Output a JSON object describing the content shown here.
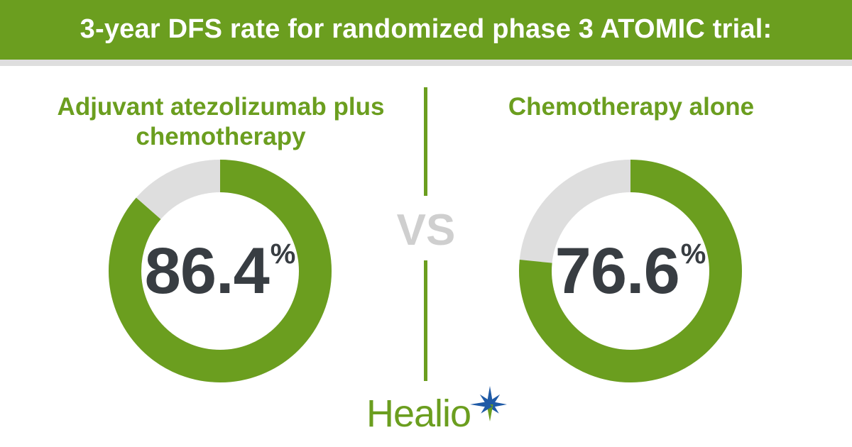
{
  "header": {
    "title": "3-year DFS rate for randomized phase 3 ATOMIC trial:"
  },
  "colors": {
    "accent": "#6b9e1f",
    "track": "#dedede",
    "value_text": "#383d42",
    "vs": "#cfcfcf",
    "star_blue": "#1f5aa6"
  },
  "vs_label": "VS",
  "logo": {
    "text": "Healio",
    "icon": "healio-star-icon"
  },
  "chart_data": [
    {
      "type": "pie",
      "title": "Adjuvant atezolizumab plus chemotherapy",
      "value": 86.4,
      "value_label": "86.4",
      "unit": "%",
      "max": 100
    },
    {
      "type": "pie",
      "title": "Chemotherapy alone",
      "value": 76.6,
      "value_label": "76.6",
      "unit": "%",
      "max": 100
    }
  ]
}
